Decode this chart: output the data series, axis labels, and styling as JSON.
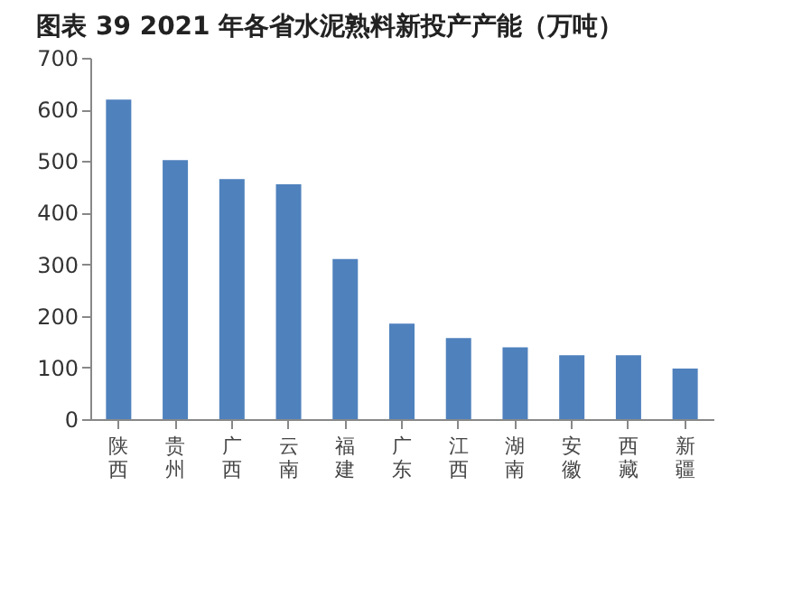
{
  "chart_data": {
    "type": "bar",
    "title": "图表 39 2021 年各省水泥熟料新投产产能（万吨）",
    "categories": [
      "陕西",
      "贵州",
      "广西",
      "云南",
      "福建",
      "广东",
      "江西",
      "湖南",
      "安徽",
      "西藏",
      "新疆"
    ],
    "values": [
      619,
      502,
      465,
      455,
      310,
      185,
      157,
      139,
      124,
      124,
      98
    ],
    "color": "#4f81bd",
    "ylim": [
      0,
      700
    ],
    "yticks": [
      0,
      100,
      200,
      300,
      400,
      500,
      600,
      700
    ],
    "grid": false
  }
}
